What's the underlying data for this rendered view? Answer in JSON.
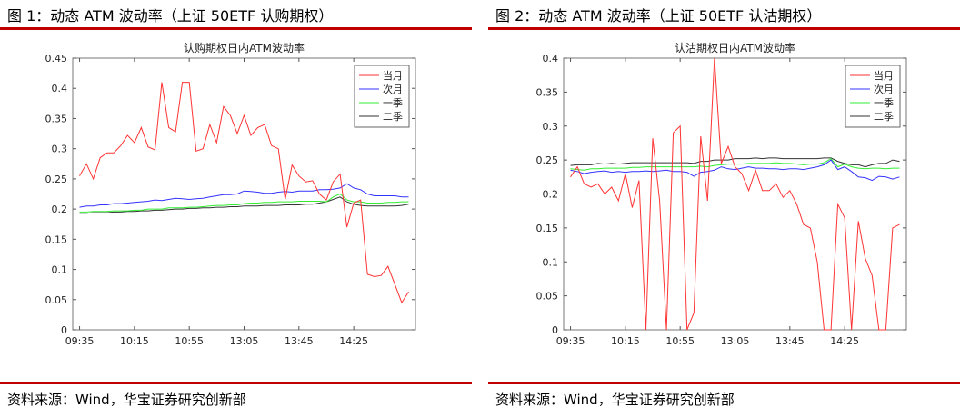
{
  "panels": [
    {
      "figure_title": "图 1：动态 ATM 波动率（上证 50ETF 认购期权）",
      "source": "资料来源：Wind，华宝证券研究创新部"
    },
    {
      "figure_title": "图 2：动态 ATM 波动率（上证 50ETF 认沽期权）",
      "source": "资料来源：Wind，华宝证券研究创新部"
    }
  ],
  "colors": {
    "rule": "#c00000",
    "series": [
      "#ff3333",
      "#3333ff",
      "#33ee33",
      "#333333"
    ]
  },
  "chart_data": [
    {
      "type": "line",
      "title": "认购期权日内ATM波动率",
      "xlabel": "",
      "ylabel": "",
      "x_ticks": [
        "09:35",
        "10:15",
        "10:55",
        "13:05",
        "13:45",
        "14:25"
      ],
      "x_tick_positions": [
        0,
        8,
        16,
        24,
        32,
        40
      ],
      "xlim": [
        -1,
        49
      ],
      "ylim": [
        0,
        0.45
      ],
      "y_ticks": [
        0,
        0.05,
        0.1,
        0.15,
        0.2,
        0.25,
        0.3,
        0.35,
        0.4,
        0.45
      ],
      "grid": false,
      "legend_position": "top-right",
      "series": [
        {
          "name": "当月",
          "values": [
            0.255,
            0.275,
            0.25,
            0.285,
            0.293,
            0.293,
            0.305,
            0.322,
            0.31,
            0.335,
            0.303,
            0.298,
            0.41,
            0.335,
            0.328,
            0.41,
            0.41,
            0.296,
            0.3,
            0.34,
            0.31,
            0.37,
            0.355,
            0.325,
            0.355,
            0.322,
            0.335,
            0.34,
            0.305,
            0.3,
            0.216,
            0.273,
            0.255,
            0.245,
            0.247,
            0.225,
            0.215,
            0.245,
            0.258,
            0.17,
            0.21,
            0.215,
            0.092,
            0.088,
            0.09,
            0.105,
            0.075,
            0.045,
            0.063
          ]
        },
        {
          "name": "次月",
          "values": [
            0.203,
            0.205,
            0.205,
            0.207,
            0.207,
            0.209,
            0.209,
            0.21,
            0.211,
            0.212,
            0.213,
            0.215,
            0.214,
            0.216,
            0.218,
            0.217,
            0.216,
            0.217,
            0.218,
            0.22,
            0.222,
            0.224,
            0.224,
            0.225,
            0.23,
            0.229,
            0.228,
            0.226,
            0.226,
            0.228,
            0.229,
            0.228,
            0.23,
            0.23,
            0.23,
            0.232,
            0.232,
            0.233,
            0.235,
            0.242,
            0.235,
            0.232,
            0.225,
            0.222,
            0.222,
            0.222,
            0.222,
            0.22,
            0.22
          ]
        },
        {
          "name": "一季",
          "values": [
            0.195,
            0.195,
            0.196,
            0.196,
            0.196,
            0.197,
            0.197,
            0.197,
            0.198,
            0.198,
            0.2,
            0.2,
            0.2,
            0.202,
            0.202,
            0.202,
            0.203,
            0.203,
            0.204,
            0.205,
            0.206,
            0.206,
            0.207,
            0.207,
            0.209,
            0.21,
            0.21,
            0.211,
            0.211,
            0.212,
            0.212,
            0.212,
            0.213,
            0.213,
            0.213,
            0.213,
            0.212,
            0.22,
            0.225,
            0.215,
            0.212,
            0.212,
            0.21,
            0.21,
            0.21,
            0.211,
            0.211,
            0.212,
            0.212
          ]
        },
        {
          "name": "二季",
          "values": [
            0.193,
            0.193,
            0.194,
            0.194,
            0.194,
            0.195,
            0.195,
            0.196,
            0.196,
            0.197,
            0.197,
            0.198,
            0.198,
            0.199,
            0.2,
            0.2,
            0.201,
            0.201,
            0.202,
            0.202,
            0.203,
            0.203,
            0.204,
            0.204,
            0.205,
            0.205,
            0.205,
            0.206,
            0.206,
            0.206,
            0.207,
            0.207,
            0.207,
            0.208,
            0.208,
            0.21,
            0.212,
            0.216,
            0.22,
            0.212,
            0.208,
            0.206,
            0.205,
            0.205,
            0.205,
            0.205,
            0.205,
            0.206,
            0.208
          ]
        }
      ]
    },
    {
      "type": "line",
      "title": "认沽期权日内ATM波动率",
      "xlabel": "",
      "ylabel": "",
      "x_ticks": [
        "09:35",
        "10:15",
        "10:55",
        "13:05",
        "13:45",
        "14:25"
      ],
      "x_tick_positions": [
        0,
        8,
        16,
        24,
        32,
        40
      ],
      "xlim": [
        -1,
        49
      ],
      "ylim": [
        0,
        0.4
      ],
      "y_ticks": [
        0,
        0.05,
        0.1,
        0.15,
        0.2,
        0.25,
        0.3,
        0.35,
        0.4
      ],
      "grid": false,
      "legend_position": "top-right",
      "series": [
        {
          "name": "当月",
          "values": [
            0.225,
            0.24,
            0.215,
            0.21,
            0.215,
            0.2,
            0.21,
            0.19,
            0.23,
            0.18,
            0.22,
            0,
            0.282,
            0.19,
            0,
            0.29,
            0.3,
            0,
            0.025,
            0.285,
            0.19,
            0.4,
            0.245,
            0.27,
            0.24,
            0.23,
            0.205,
            0.235,
            0.205,
            0.205,
            0.215,
            0.195,
            0.205,
            0.185,
            0.155,
            0.15,
            0.1,
            0,
            0,
            0.185,
            0.165,
            0,
            0.16,
            0.105,
            0.08,
            0,
            0,
            0.15,
            0.155
          ]
        },
        {
          "name": "次月",
          "values": [
            0.235,
            0.233,
            0.23,
            0.232,
            0.233,
            0.234,
            0.232,
            0.233,
            0.232,
            0.233,
            0.233,
            0.234,
            0.233,
            0.234,
            0.235,
            0.233,
            0.233,
            0.232,
            0.226,
            0.232,
            0.233,
            0.235,
            0.24,
            0.237,
            0.236,
            0.238,
            0.24,
            0.238,
            0.238,
            0.237,
            0.237,
            0.236,
            0.237,
            0.237,
            0.236,
            0.238,
            0.24,
            0.243,
            0.25,
            0.236,
            0.24,
            0.233,
            0.225,
            0.224,
            0.22,
            0.226,
            0.225,
            0.222,
            0.225
          ]
        },
        {
          "name": "一季",
          "values": [
            0.237,
            0.236,
            0.235,
            0.237,
            0.237,
            0.238,
            0.238,
            0.238,
            0.238,
            0.239,
            0.239,
            0.24,
            0.24,
            0.24,
            0.24,
            0.24,
            0.24,
            0.24,
            0.24,
            0.241,
            0.24,
            0.242,
            0.243,
            0.244,
            0.244,
            0.244,
            0.245,
            0.245,
            0.245,
            0.245,
            0.246,
            0.245,
            0.245,
            0.244,
            0.243,
            0.244,
            0.244,
            0.246,
            0.252,
            0.24,
            0.244,
            0.24,
            0.238,
            0.237,
            0.238,
            0.238,
            0.237,
            0.238,
            0.238
          ]
        },
        {
          "name": "二季",
          "values": [
            0.242,
            0.243,
            0.243,
            0.243,
            0.245,
            0.244,
            0.245,
            0.244,
            0.245,
            0.246,
            0.246,
            0.246,
            0.246,
            0.246,
            0.246,
            0.246,
            0.246,
            0.246,
            0.245,
            0.248,
            0.248,
            0.25,
            0.25,
            0.25,
            0.252,
            0.252,
            0.252,
            0.253,
            0.252,
            0.253,
            0.253,
            0.252,
            0.252,
            0.252,
            0.252,
            0.252,
            0.252,
            0.253,
            0.253,
            0.248,
            0.245,
            0.243,
            0.243,
            0.24,
            0.243,
            0.245,
            0.245,
            0.25,
            0.248
          ]
        }
      ]
    }
  ]
}
